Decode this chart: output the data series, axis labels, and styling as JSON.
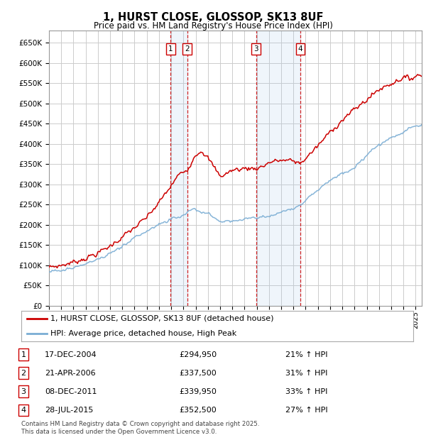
{
  "title": "1, HURST CLOSE, GLOSSOP, SK13 8UF",
  "subtitle": "Price paid vs. HM Land Registry's House Price Index (HPI)",
  "ylim": [
    0,
    680000
  ],
  "yticks": [
    0,
    50000,
    100000,
    150000,
    200000,
    250000,
    300000,
    350000,
    400000,
    450000,
    500000,
    550000,
    600000,
    650000
  ],
  "ytick_labels": [
    "£0",
    "£50K",
    "£100K",
    "£150K",
    "£200K",
    "£250K",
    "£300K",
    "£350K",
    "£400K",
    "£450K",
    "£500K",
    "£550K",
    "£600K",
    "£650K"
  ],
  "xlim_start": 1995.0,
  "xlim_end": 2025.5,
  "sale_dates": [
    2004.96,
    2006.31,
    2011.94,
    2015.58
  ],
  "sale_prices": [
    294950,
    337500,
    339950,
    352500
  ],
  "sale_labels": [
    "1",
    "2",
    "3",
    "4"
  ],
  "sale_date_strings": [
    "17-DEC-2004",
    "21-APR-2006",
    "08-DEC-2011",
    "28-JUL-2015"
  ],
  "sale_pct": [
    "21%",
    "31%",
    "33%",
    "27%"
  ],
  "legend_line1": "1, HURST CLOSE, GLOSSOP, SK13 8UF (detached house)",
  "legend_line2": "HPI: Average price, detached house, High Peak",
  "footer": "Contains HM Land Registry data © Crown copyright and database right 2025.\nThis data is licensed under the Open Government Licence v3.0.",
  "red_color": "#cc0000",
  "blue_color": "#7aadd4",
  "bg_color": "#ffffff",
  "grid_color": "#cccccc",
  "shade_color": "#ddeeff",
  "hpi_anchors_x": [
    1995,
    1996,
    1997,
    1998,
    1999,
    2000,
    2001,
    2002,
    2003,
    2004,
    2005,
    2006,
    2007,
    2008,
    2009,
    2010,
    2011,
    2012,
    2013,
    2014,
    2015,
    2016,
    2017,
    2018,
    2019,
    2020,
    2021,
    2022,
    2023,
    2024,
    2025
  ],
  "hpi_anchors_y": [
    83000,
    88000,
    95000,
    103000,
    113000,
    128000,
    148000,
    167000,
    185000,
    200000,
    215000,
    228000,
    235000,
    228000,
    208000,
    210000,
    215000,
    218000,
    222000,
    232000,
    242000,
    260000,
    285000,
    310000,
    330000,
    340000,
    370000,
    400000,
    415000,
    430000,
    445000
  ],
  "red_anchors_x": [
    1995,
    1996,
    1997,
    1998,
    1999,
    2000,
    2001,
    2002,
    2003,
    2004,
    2004.96,
    2005.5,
    2006.31,
    2007,
    2007.5,
    2008,
    2009,
    2010,
    2011,
    2011.94,
    2012.5,
    2013,
    2014,
    2015,
    2015.58,
    2016,
    2017,
    2018,
    2019,
    2020,
    2021,
    2022,
    2023,
    2024,
    2024.5,
    2025
  ],
  "red_anchors_y": [
    95000,
    100000,
    108000,
    118000,
    130000,
    148000,
    170000,
    193000,
    218000,
    255000,
    294950,
    320000,
    337500,
    375000,
    385000,
    365000,
    320000,
    335000,
    340000,
    339950,
    345000,
    355000,
    360000,
    358000,
    352500,
    365000,
    395000,
    430000,
    460000,
    485000,
    510000,
    535000,
    550000,
    565000,
    560000,
    570000
  ]
}
